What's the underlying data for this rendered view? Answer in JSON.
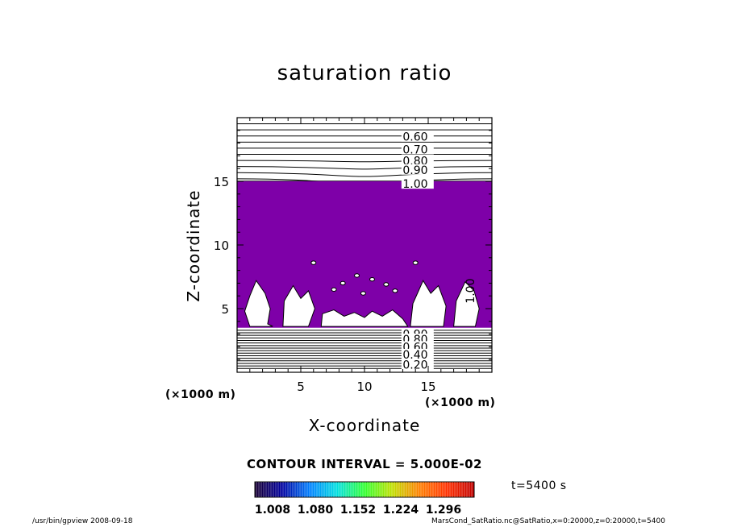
{
  "title": "saturation ratio",
  "contour_interval": "CONTOUR INTERVAL = 5.000E-02",
  "time_label": "t=5400 s",
  "footer": {
    "left": "/usr/bin/gpview   2008-09-18",
    "right": "MarsCond_SatRatio.nc@SatRatio,x=0:20000,z=0:20000,t=5400"
  },
  "chart_data": {
    "type": "contour",
    "title": "saturation ratio",
    "xlabel": "X-coordinate",
    "ylabel": "Z-coordinate",
    "x_unit": "(×1000 m)",
    "z_unit": "(×1000 m)",
    "xlim": [
      0,
      20
    ],
    "zlim": [
      0,
      20
    ],
    "x_ticks": [
      5,
      10,
      15
    ],
    "z_ticks": [
      5,
      10,
      15
    ],
    "contour_interval": 0.05,
    "contour_labels": [
      "0.60",
      "0.70",
      "0.80",
      "0.90",
      "1.00",
      "0.90",
      "0.80",
      "0.60",
      "0.40",
      "0.20",
      "1.00"
    ],
    "shaded_region": {
      "z_range": [
        3.5,
        15
      ],
      "color": "#7e00a8"
    },
    "colorbar": {
      "ticks": [
        "1.008",
        "1.080",
        "1.152",
        "1.224",
        "1.296"
      ],
      "min": 1.008,
      "max": 1.296,
      "colors": [
        "#1a0033",
        "#0000a0",
        "#0080ff",
        "#00e0e0",
        "#30ff30",
        "#c0e000",
        "#ff8000",
        "#ff3000",
        "#c00000"
      ]
    }
  }
}
